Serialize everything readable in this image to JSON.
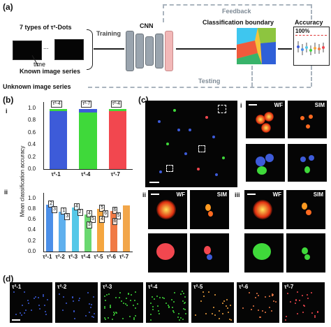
{
  "panels": {
    "a": "(a)",
    "b": "(b)",
    "c": "(c)",
    "d": "(d)"
  },
  "panel_a": {
    "dots_title": "7 types of τ²-Dots",
    "ellipsis": "...",
    "time_label": "time",
    "known_label": "Known image series",
    "unknown_label": "Unknown image series",
    "training": "Training",
    "testing": "Testing",
    "feedback": "Feedback",
    "cnn": "CNN",
    "boundary": "Classification boundary",
    "accuracy": "Accuracy",
    "percent": "100%"
  },
  "panel_b": {
    "roman_i": "i",
    "roman_ii": "ii",
    "ylabel": "Mean classification accuracy",
    "top": {
      "categories": [
        "τ²-1",
        "τ²-4",
        "τ²-7"
      ],
      "ticks": [
        "0.0",
        "0.2",
        "0.4",
        "0.6",
        "0.8",
        "1.0"
      ],
      "tags": [
        "τ²-4",
        "τ²-7",
        "τ²-4"
      ]
    },
    "bottom": {
      "categories": [
        "τ²-1",
        "τ²-2",
        "τ²-3",
        "τ²-4",
        "τ²-5",
        "τ²-6",
        "τ²-7"
      ],
      "ticks": [
        "0.0",
        "0.2",
        "0.4",
        "0.6",
        "0.8",
        "1.0"
      ],
      "tags": [
        "2",
        "3",
        "1",
        "3",
        "4",
        "2",
        "4",
        "5",
        "3",
        "5",
        "6",
        "4",
        "6",
        "5",
        "6"
      ]
    }
  },
  "panel_c": {
    "roman_i": "i",
    "roman_ii": "ii",
    "roman_iii": "iii",
    "wf": "WF",
    "sim": "SIM"
  },
  "panel_d": {
    "labels": [
      "τ²-1",
      "τ²-2",
      "τ²-3",
      "τ²-4",
      "τ²-5",
      "τ²-6",
      "τ²-7"
    ]
  },
  "chart_data": [
    {
      "type": "bar",
      "categories": [
        "τ²-1",
        "τ²-4",
        "τ²-7"
      ],
      "ylabel": "Mean classification accuracy",
      "ylim": [
        0,
        1.1
      ],
      "series": [
        {
          "values": [
            0.95,
            0.93,
            0.95
          ]
        },
        {
          "values": [
            0.04,
            0.05,
            0.04
          ]
        }
      ],
      "colors": [
        "#3d5bd9",
        "#3fd93a",
        "#f2474f"
      ]
    },
    {
      "type": "bar",
      "categories": [
        "τ²-1",
        "τ²-2",
        "τ²-3",
        "τ²-4",
        "τ²-5",
        "τ²-6",
        "τ²-7"
      ],
      "ylabel": "Mean classification accuracy",
      "ylim": [
        0,
        1.1
      ],
      "values": [
        0.88,
        0.74,
        0.82,
        0.7,
        0.8,
        0.76,
        0.86
      ],
      "colors": [
        "#4b8fe8",
        "#5fb0ee",
        "#55c8e8",
        "#6ad870",
        "#f5a640",
        "#f07a45",
        "#f2a64a"
      ]
    }
  ]
}
